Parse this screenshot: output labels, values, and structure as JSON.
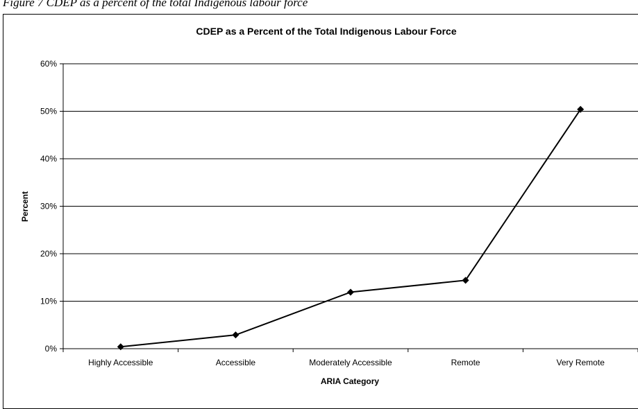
{
  "figure": {
    "caption": "Figure 7 CDEP as a percent of the total Indigenous labour force"
  },
  "chart_data": {
    "type": "line",
    "title": "CDEP as a Percent of the Total Indigenous Labour Force",
    "xlabel": "ARIA Category",
    "ylabel": "Percent",
    "categories": [
      "Highly Accessible",
      "Accessible",
      "Moderately Accessible",
      "Remote",
      "Very Remote"
    ],
    "series": [
      {
        "values": [
          0.4,
          2.9,
          11.9,
          14.4,
          50.4
        ]
      }
    ],
    "y_ticks": [
      "0%",
      "10%",
      "20%",
      "30%",
      "40%",
      "50%",
      "60%"
    ],
    "ylim": [
      0,
      60
    ],
    "grid": true,
    "legend": false,
    "colors": {
      "line": "#000000",
      "grid": "#000000",
      "marker": "#000000"
    }
  }
}
